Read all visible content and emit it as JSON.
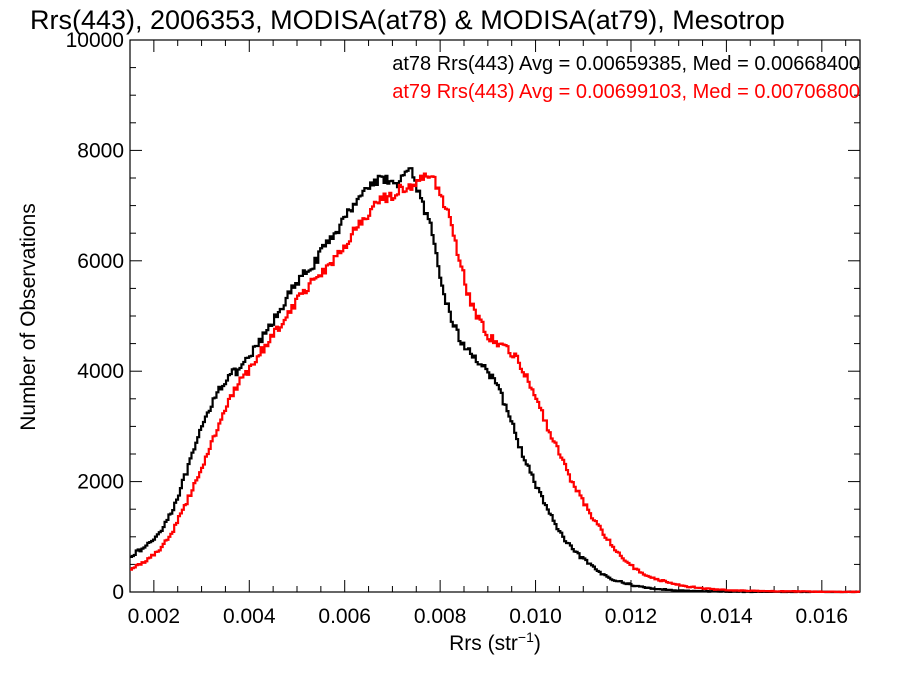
{
  "chart_data": {
    "type": "line",
    "title": "Rrs(443), 2006353, MODISA(at78) & MODISA(at79), Mesotrop",
    "xlabel": "Rrs (str",
    "xlabel_sup": "−1",
    "xlabel_close": ")",
    "ylabel": "Number of Observations",
    "xlim": [
      0.0015,
      0.0168
    ],
    "ylim": [
      0,
      10000
    ],
    "xticks": [
      0.002,
      0.004,
      0.006,
      0.008,
      0.01,
      0.012,
      0.014,
      0.016
    ],
    "xtick_labels": [
      "0.002",
      "0.004",
      "0.006",
      "0.008",
      "0.010",
      "0.012",
      "0.014",
      "0.016"
    ],
    "yticks": [
      0,
      2000,
      4000,
      6000,
      8000,
      10000
    ],
    "ytick_labels": [
      "0",
      "2000",
      "4000",
      "6000",
      "8000",
      "10000"
    ],
    "grid": false,
    "annotations": [
      {
        "text": "at78 Rrs(443) Avg = 0.00659385, Med = 0.00668400",
        "color": "#000000"
      },
      {
        "text": "at79 Rrs(443) Avg = 0.00699103, Med = 0.00706800",
        "color": "#ff0000"
      }
    ],
    "series": [
      {
        "color": "#000000",
        "x": [
          0.0015,
          0.0018,
          0.0021,
          0.0024,
          0.0027,
          0.003,
          0.0033,
          0.0036,
          0.0038,
          0.004,
          0.0042,
          0.0045,
          0.0048,
          0.0051,
          0.0054,
          0.0057,
          0.006,
          0.0063,
          0.0066,
          0.0068,
          0.007,
          0.0072,
          0.0073,
          0.0074,
          0.0075,
          0.0076,
          0.0078,
          0.008,
          0.0082,
          0.0084,
          0.0086,
          0.0088,
          0.009,
          0.0092,
          0.0094,
          0.0096,
          0.0098,
          0.01,
          0.0102,
          0.0104,
          0.0106,
          0.0108,
          0.011,
          0.0112,
          0.0114,
          0.0116,
          0.0118,
          0.012,
          0.0122,
          0.0124,
          0.0126,
          0.0128,
          0.013,
          0.0132,
          0.0134,
          0.0136,
          0.0138,
          0.014,
          0.0145,
          0.015,
          0.0155,
          0.016,
          0.0165,
          0.0168
        ],
        "values": [
          650,
          800,
          1050,
          1500,
          2200,
          2950,
          3600,
          3950,
          4000,
          4250,
          4500,
          4900,
          5350,
          5700,
          6000,
          6400,
          6750,
          7200,
          7400,
          7550,
          7350,
          7500,
          7550,
          7650,
          7400,
          7100,
          6600,
          5700,
          5050,
          4600,
          4350,
          4200,
          4000,
          3700,
          3350,
          2800,
          2350,
          1950,
          1600,
          1250,
          950,
          750,
          600,
          450,
          320,
          240,
          180,
          130,
          95,
          70,
          50,
          40,
          30,
          20,
          15,
          12,
          10,
          8,
          5,
          3,
          2,
          2,
          1,
          1
        ]
      },
      {
        "color": "#ff0000",
        "x": [
          0.0015,
          0.0018,
          0.0021,
          0.0024,
          0.0027,
          0.003,
          0.0033,
          0.0036,
          0.0038,
          0.004,
          0.0042,
          0.0045,
          0.0048,
          0.0051,
          0.0054,
          0.0057,
          0.006,
          0.0063,
          0.0066,
          0.0068,
          0.007,
          0.0072,
          0.0074,
          0.0076,
          0.0078,
          0.008,
          0.0082,
          0.0084,
          0.0086,
          0.0088,
          0.009,
          0.0092,
          0.0094,
          0.0096,
          0.0098,
          0.01,
          0.0102,
          0.0104,
          0.0106,
          0.0108,
          0.011,
          0.0112,
          0.0114,
          0.0116,
          0.0118,
          0.012,
          0.0122,
          0.0124,
          0.0126,
          0.0128,
          0.013,
          0.0132,
          0.0134,
          0.0136,
          0.0138,
          0.014,
          0.0145,
          0.015,
          0.0155,
          0.016,
          0.0165,
          0.0168
        ],
        "values": [
          400,
          550,
          750,
          1100,
          1650,
          2250,
          2900,
          3500,
          3800,
          4000,
          4300,
          4650,
          5050,
          5400,
          5700,
          5950,
          6250,
          6650,
          6950,
          7100,
          7200,
          7300,
          7350,
          7450,
          7550,
          7250,
          6800,
          6050,
          5350,
          4950,
          4650,
          4500,
          4400,
          4250,
          3900,
          3500,
          3100,
          2700,
          2300,
          1950,
          1650,
          1350,
          1100,
          850,
          650,
          480,
          360,
          280,
          220,
          170,
          130,
          100,
          80,
          60,
          45,
          35,
          22,
          15,
          10,
          6,
          3,
          2
        ]
      }
    ]
  }
}
